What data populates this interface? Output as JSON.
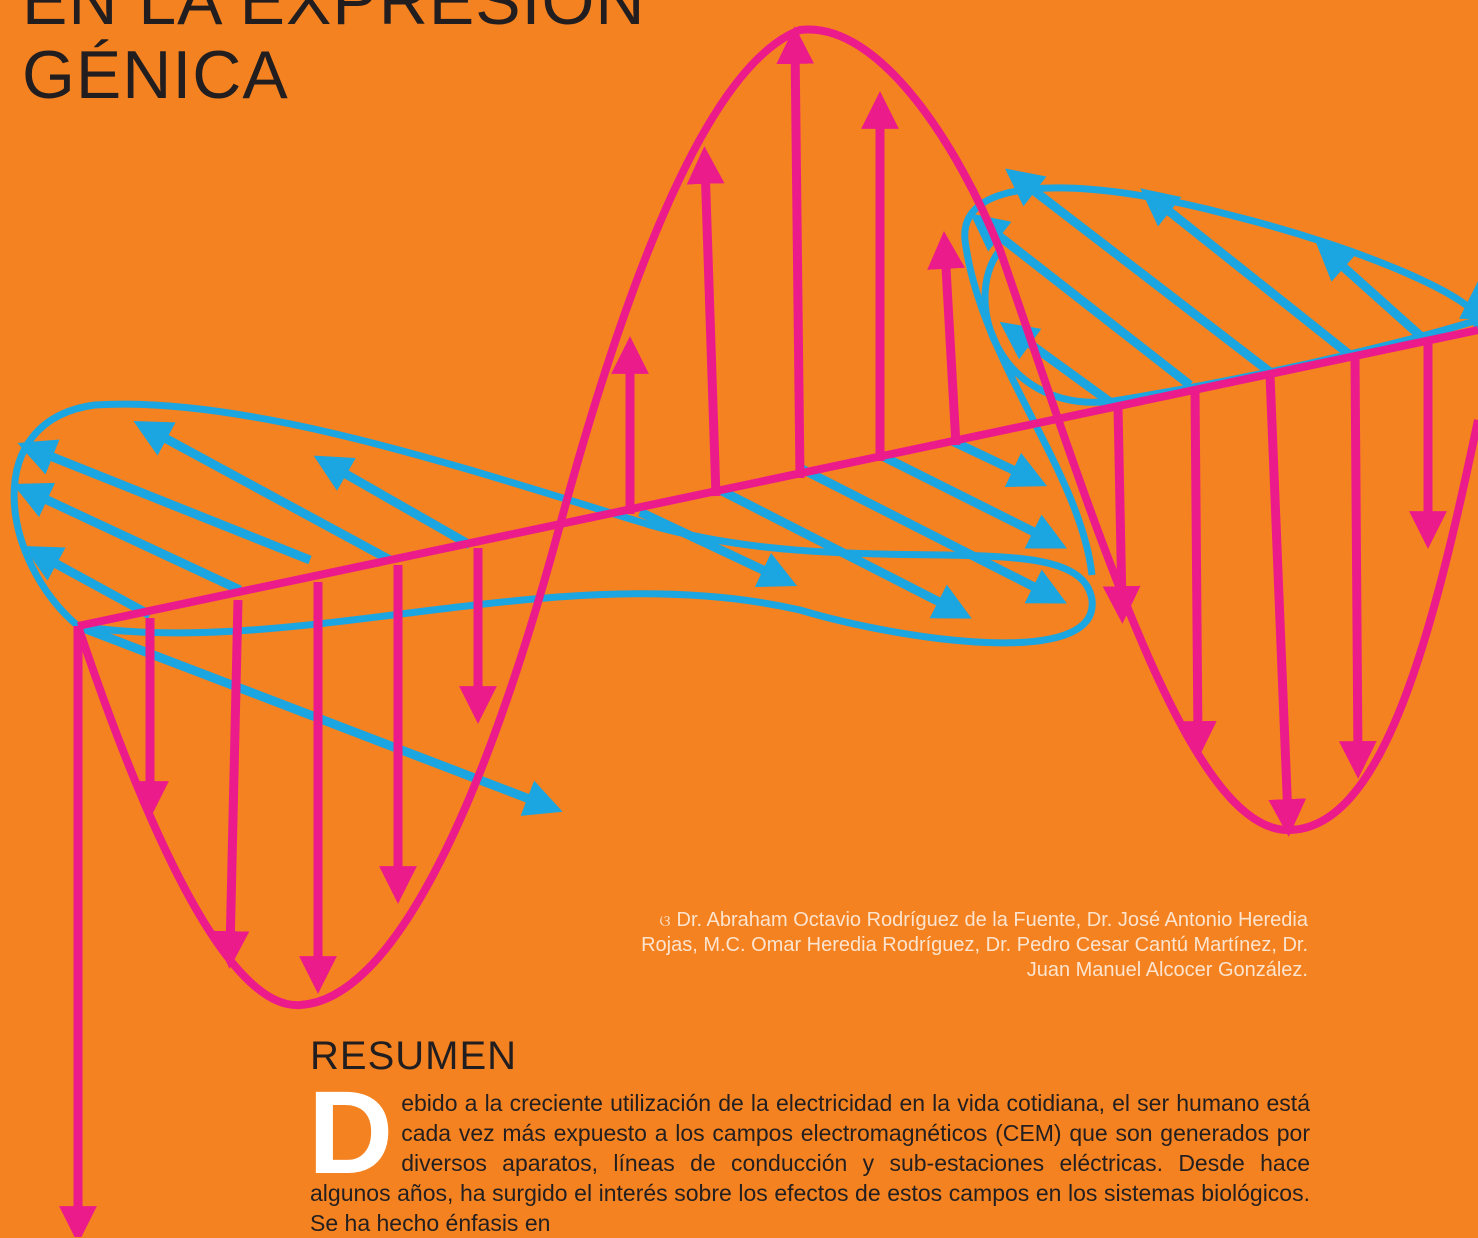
{
  "title": {
    "line1": "EN LA EXPRESIÓN",
    "line2": "GÉNICA"
  },
  "authors": {
    "mark": "ଓ",
    "text": "Dr. Abraham Octavio Rodríguez de la Fuente, Dr. José Antonio Heredia Rojas, M.C. Omar Heredia Rodríguez, Dr. Pedro Cesar Cantú Martínez, Dr. Juan Manuel Alcocer González."
  },
  "summary": {
    "heading": "RESUMEN",
    "dropcap": "D",
    "body": "ebido a la creciente utilización de la electricidad en la vida cotidiana, el ser humano está cada vez más expuesto a los campos electromagnéticos (CEM) que son generados por diversos aparatos, líneas de conducción y sub-estaciones eléctricas. Desde hace algunos años, ha surgido el interés sobre los efectos de estos campos en los sistemas biológicos. Se ha hecho énfasis en"
  },
  "colors": {
    "background": "#F48220",
    "electric": "#EC1B8C",
    "magnetic": "#1BA5E1",
    "title": "#221E20",
    "authors": "#FCE4CF"
  }
}
